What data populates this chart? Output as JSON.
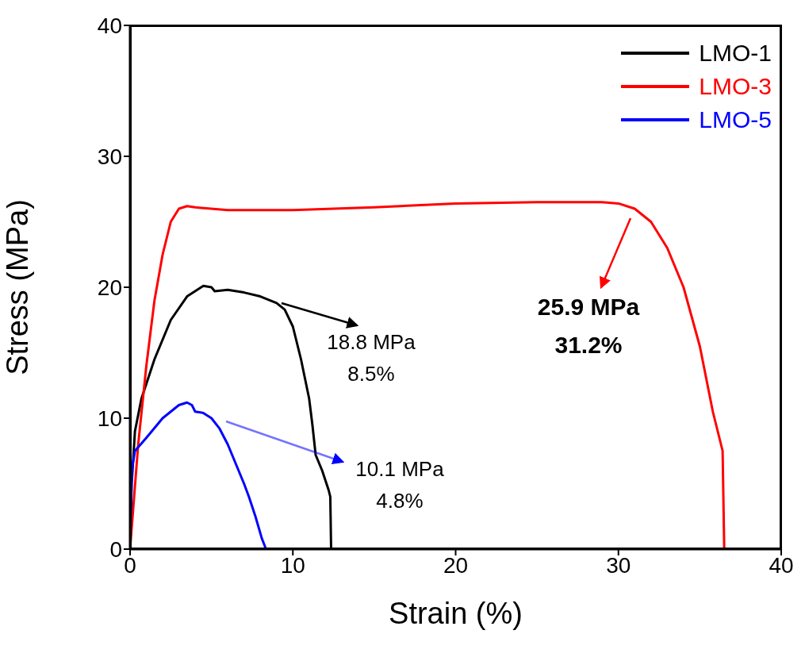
{
  "chart_data": {
    "type": "line",
    "xlabel": "Strain (%)",
    "ylabel": "Stress (MPa)",
    "xlim": [
      0,
      40
    ],
    "xticks": [
      0,
      10,
      20,
      30,
      40
    ],
    "ylim": [
      0,
      40
    ],
    "yticks": [
      0,
      10,
      20,
      30,
      40
    ],
    "legend": "top right",
    "marker": "none",
    "line_style": "solid",
    "series": [
      {
        "name": "LMO-1",
        "color": "#000000",
        "x": [
          0,
          0.1,
          0.3,
          0.7,
          1.5,
          2.5,
          3.5,
          4.5,
          5,
          5.2,
          6,
          7,
          8,
          9,
          9.5,
          10,
          10.5,
          11,
          11.2,
          11.4,
          11.8,
          12.2,
          12.3,
          12.35
        ],
        "values": [
          0,
          5,
          9,
          11.5,
          14.5,
          17.5,
          19.3,
          20.1,
          20,
          19.7,
          19.8,
          19.6,
          19.3,
          18.8,
          18.3,
          17,
          14.5,
          11.5,
          9.5,
          7.2,
          6,
          4.5,
          4,
          0
        ]
      },
      {
        "name": "LMO-3",
        "color": "#ff0000",
        "x": [
          0,
          0.5,
          1,
          1.5,
          2,
          2.5,
          3,
          3.5,
          4,
          6,
          10,
          15,
          20,
          25,
          29,
          30,
          31,
          32,
          33,
          34,
          35,
          35.8,
          36.4,
          36.5
        ],
        "values": [
          0,
          8,
          14,
          19,
          22.5,
          25,
          26,
          26.2,
          26.1,
          25.9,
          25.9,
          26.1,
          26.4,
          26.5,
          26.5,
          26.4,
          26,
          25,
          23,
          20,
          15.5,
          10.5,
          7.5,
          0
        ]
      },
      {
        "name": "LMO-5",
        "color": "#0000ff",
        "x": [
          0,
          0.1,
          0.3,
          1,
          2,
          3,
          3.5,
          3.8,
          4,
          4.5,
          5,
          5.5,
          6,
          6.5,
          7,
          7.3,
          7.7,
          8.1,
          8.35
        ],
        "values": [
          0,
          6,
          7.5,
          8.5,
          10,
          11,
          11.2,
          11,
          10.5,
          10.4,
          10,
          9.2,
          8,
          6.5,
          5,
          4,
          2.5,
          0.8,
          0
        ]
      }
    ],
    "annotations": [
      "18.8 MPa\n8.5%",
      "25.9 MPa\n31.2%",
      "10.1 MPa\n4.8%"
    ]
  }
}
